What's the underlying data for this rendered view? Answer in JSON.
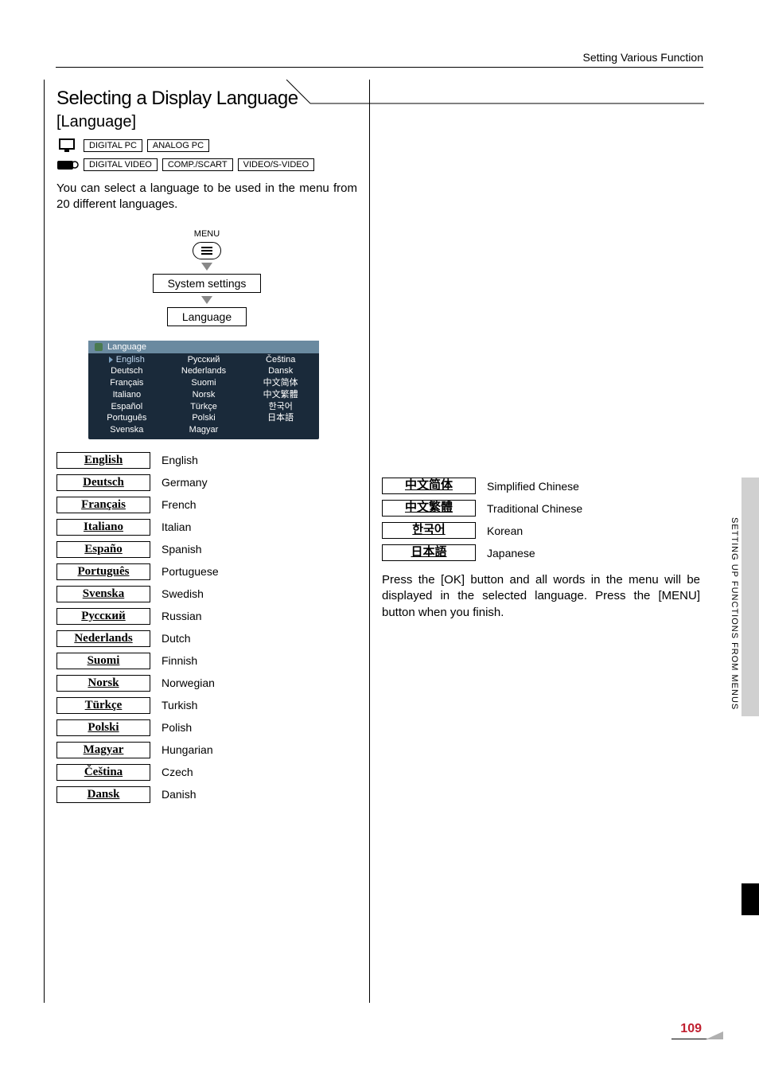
{
  "header": {
    "breadcrumb": "Setting Various Function"
  },
  "section": {
    "title": "Selecting a Display Language",
    "subtitle": "[Language]"
  },
  "tags": {
    "row1": [
      "DIGITAL PC",
      "ANALOG PC"
    ],
    "row2": [
      "DIGITAL VIDEO",
      "COMP./SCART",
      "VIDEO/S-VIDEO"
    ]
  },
  "intro": "You can select a language to be used in the menu from 20 different languages.",
  "flow": {
    "menu_label": "MENU",
    "step1": "System settings",
    "step2": "Language"
  },
  "panel": {
    "header": "Language",
    "col1": [
      "English",
      "Deutsch",
      "Français",
      "Italiano",
      "Español",
      "Português",
      "Svenska"
    ],
    "col2": [
      "Русский",
      "Nederlands",
      "Suomi",
      "Norsk",
      "Türkçe",
      "Polski",
      "Magyar"
    ],
    "col3": [
      "Čeština",
      "Dansk",
      "中文简体",
      "中文繁體",
      "한국어",
      "日本語"
    ]
  },
  "left_langs": [
    {
      "native": "English",
      "desc": "English"
    },
    {
      "native": "Deutsch",
      "desc": "Germany"
    },
    {
      "native": "Français",
      "desc": "French"
    },
    {
      "native": "Italiano",
      "desc": "Italian"
    },
    {
      "native": "Españo",
      "desc": "Spanish"
    },
    {
      "native": "Português",
      "desc": "Portuguese"
    },
    {
      "native": "Svenska",
      "desc": "Swedish"
    },
    {
      "native": "Русский",
      "desc": "Russian"
    },
    {
      "native": "Nederlands",
      "desc": "Dutch"
    },
    {
      "native": "Suomi",
      "desc": "Finnish"
    },
    {
      "native": "Norsk",
      "desc": "Norwegian"
    },
    {
      "native": "Türkçe",
      "desc": "Turkish"
    },
    {
      "native": "Polski",
      "desc": "Polish"
    },
    {
      "native": "Magyar",
      "desc": "Hungarian"
    },
    {
      "native": "Čeština",
      "desc": "Czech"
    },
    {
      "native": "Dansk",
      "desc": "Danish"
    }
  ],
  "right_langs": [
    {
      "native": "中文简体",
      "desc": "Simplified Chinese"
    },
    {
      "native": "中文繁體",
      "desc": "Traditional Chinese"
    },
    {
      "native": "한국어",
      "desc": "Korean"
    },
    {
      "native": "日本語",
      "desc": "Japanese"
    }
  ],
  "right_text": "Press the [OK] button and all words in the menu will be displayed in the selected language. Press the [MENU] button when you finish.",
  "side_tab_text": "SETTING UP FUNCTIONS FROM MENUS",
  "page_number": "109",
  "colors": {
    "panel_bg": "#1a2a3a",
    "panel_header_bg": "#6a8aa0",
    "page_num_color": "#c02030",
    "side_tab_bg": "#d0d0d0"
  }
}
